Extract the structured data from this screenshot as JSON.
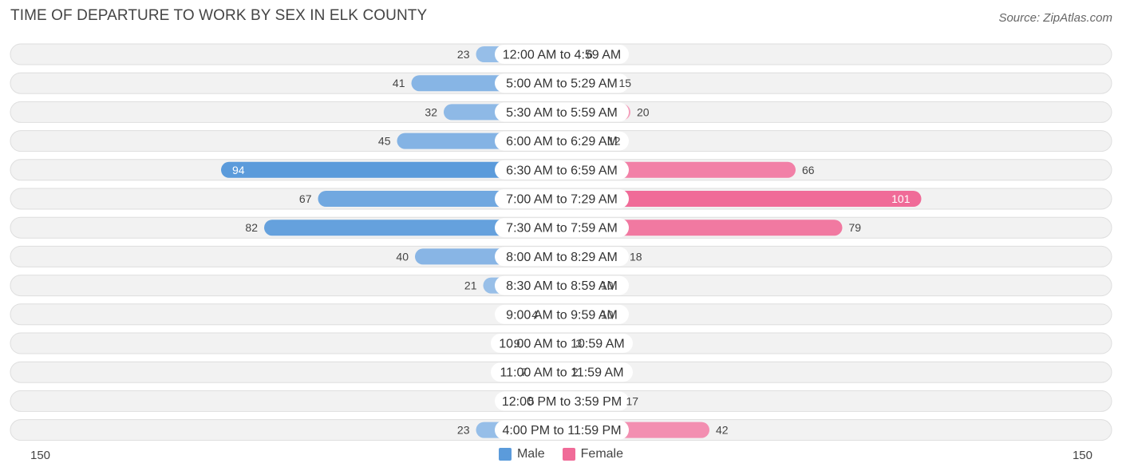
{
  "header": {
    "title": "TIME OF DEPARTURE TO WORK BY SEX IN ELK COUNTY",
    "source": "Source: ZipAtlas.com"
  },
  "colors": {
    "male": "#5b9bdb",
    "male_light": "#a9c9ec",
    "female": "#f06b98",
    "female_light": "#f5a9c2",
    "track": "#efefef"
  },
  "chart_data": {
    "type": "bar",
    "orientation": "horizontal-diverging",
    "title": "TIME OF DEPARTURE TO WORK BY SEX IN ELK COUNTY",
    "categories": [
      "12:00 AM to 4:59 AM",
      "5:00 AM to 5:29 AM",
      "5:30 AM to 5:59 AM",
      "6:00 AM to 6:29 AM",
      "6:30 AM to 6:59 AM",
      "7:00 AM to 7:29 AM",
      "7:30 AM to 7:59 AM",
      "8:00 AM to 8:29 AM",
      "8:30 AM to 8:59 AM",
      "9:00 AM to 9:59 AM",
      "10:00 AM to 10:59 AM",
      "11:00 AM to 11:59 AM",
      "12:00 PM to 3:59 PM",
      "4:00 PM to 11:59 PM"
    ],
    "series": [
      {
        "name": "Male",
        "values": [
          23,
          41,
          32,
          45,
          94,
          67,
          82,
          40,
          21,
          4,
          9,
          7,
          5,
          23
        ]
      },
      {
        "name": "Female",
        "values": [
          6,
          15,
          20,
          12,
          66,
          101,
          79,
          18,
          10,
          10,
          3,
          2,
          17,
          42
        ]
      }
    ],
    "axis": {
      "left_label": "150",
      "right_label": "150",
      "max": 150
    },
    "legend": {
      "position": "bottom-center",
      "entries": [
        "Male",
        "Female"
      ]
    }
  }
}
